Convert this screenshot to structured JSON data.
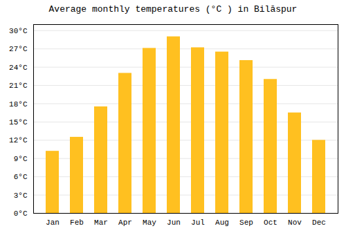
{
  "chart_data": {
    "type": "bar",
    "title": "Average monthly temperatures (°C ) in Bilāspur",
    "categories": [
      "Jan",
      "Feb",
      "Mar",
      "Apr",
      "May",
      "Jun",
      "Jul",
      "Aug",
      "Sep",
      "Oct",
      "Nov",
      "Dec"
    ],
    "values": [
      10.2,
      12.5,
      17.5,
      23.0,
      27.1,
      29.0,
      27.2,
      26.5,
      25.1,
      22.0,
      16.5,
      12.0
    ],
    "color": "#FFC020",
    "ylim": [
      0,
      31
    ],
    "yticks": [
      {
        "value": 0,
        "label": "0°C"
      },
      {
        "value": 3,
        "label": "3°C"
      },
      {
        "value": 6,
        "label": "6°C"
      },
      {
        "value": 9,
        "label": "9°C"
      },
      {
        "value": 12,
        "label": "12°C"
      },
      {
        "value": 15,
        "label": "15°C"
      },
      {
        "value": 18,
        "label": "18°C"
      },
      {
        "value": 21,
        "label": "21°C"
      },
      {
        "value": 24,
        "label": "24°C"
      },
      {
        "value": 27,
        "label": "27°C"
      },
      {
        "value": 30,
        "label": "30°C"
      }
    ],
    "grid": true
  }
}
